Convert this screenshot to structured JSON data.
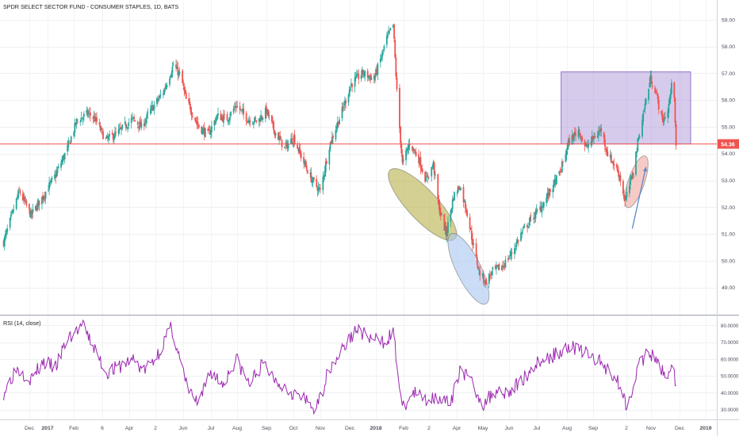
{
  "chart_data": [
    {
      "type": "candlestick",
      "title": "SPDR SELECT SECTOR FUND - CONSUMER STAPLES, 1D, BATS",
      "ylim": [
        48.4,
        59.2
      ],
      "y_ticks": [
        "59.00",
        "58.00",
        "57.00",
        "56.00",
        "55.00",
        "54.00",
        "53.00",
        "52.00",
        "51.00",
        "50.00",
        "49.00"
      ],
      "price_line": {
        "value": 54.36,
        "label": "54.36",
        "color": "#ef5350"
      },
      "x_labels": [
        "Dec",
        "2017",
        "Feb",
        "6",
        "Apr",
        "2",
        "Jun",
        "Jul",
        "Aug",
        "Sep",
        "Oct",
        "Nov",
        "Dec",
        "2018",
        "Feb",
        "2",
        "Apr",
        "May",
        "Jun",
        "Jul",
        "Aug",
        "Sep",
        "2",
        "Nov",
        "Dec",
        "2019"
      ],
      "x_label_bold": [
        "2017",
        "2018",
        "2019"
      ],
      "price_path": [
        [
          "2016-11-28",
          50.7
        ],
        [
          "2016-12-08",
          51.8
        ],
        [
          "2016-12-15",
          52.6
        ],
        [
          "2016-12-28",
          51.7
        ],
        [
          "2017-01-10",
          52.4
        ],
        [
          "2017-01-24",
          53.2
        ],
        [
          "2017-02-06",
          54.2
        ],
        [
          "2017-02-16",
          55.2
        ],
        [
          "2017-02-28",
          55.5
        ],
        [
          "2017-03-08",
          55.3
        ],
        [
          "2017-03-20",
          54.5
        ],
        [
          "2017-04-03",
          54.8
        ],
        [
          "2017-04-18",
          55.3
        ],
        [
          "2017-04-28",
          55.0
        ],
        [
          "2017-05-08",
          55.6
        ],
        [
          "2017-05-22",
          56.3
        ],
        [
          "2017-06-02",
          57.3
        ],
        [
          "2017-06-10",
          56.9
        ],
        [
          "2017-06-16",
          56.0
        ],
        [
          "2017-06-30",
          55.0
        ],
        [
          "2017-07-10",
          54.7
        ],
        [
          "2017-07-20",
          55.4
        ],
        [
          "2017-07-31",
          55.3
        ],
        [
          "2017-08-10",
          55.8
        ],
        [
          "2017-08-22",
          55.3
        ],
        [
          "2017-09-02",
          55.2
        ],
        [
          "2017-09-12",
          55.6
        ],
        [
          "2017-09-20",
          54.9
        ],
        [
          "2017-10-02",
          54.2
        ],
        [
          "2017-10-12",
          54.6
        ],
        [
          "2017-10-20",
          53.9
        ],
        [
          "2017-11-01",
          53.0
        ],
        [
          "2017-11-10",
          52.6
        ],
        [
          "2017-11-20",
          54.3
        ],
        [
          "2017-12-04",
          55.6
        ],
        [
          "2017-12-14",
          56.6
        ],
        [
          "2017-12-26",
          57.0
        ],
        [
          "2018-01-08",
          56.8
        ],
        [
          "2018-01-15",
          57.5
        ],
        [
          "2018-01-22",
          58.3
        ],
        [
          "2018-01-29",
          58.8
        ],
        [
          "2018-02-02",
          56.3
        ],
        [
          "2018-02-08",
          53.6
        ],
        [
          "2018-02-16",
          54.4
        ],
        [
          "2018-02-26",
          53.8
        ],
        [
          "2018-03-06",
          53.0
        ],
        [
          "2018-03-14",
          53.6
        ],
        [
          "2018-03-20",
          52.0
        ],
        [
          "2018-03-28",
          51.0
        ],
        [
          "2018-04-05",
          52.4
        ],
        [
          "2018-04-12",
          52.8
        ],
        [
          "2018-04-20",
          51.8
        ],
        [
          "2018-04-26",
          50.7
        ],
        [
          "2018-05-03",
          49.6
        ],
        [
          "2018-05-10",
          49.2
        ],
        [
          "2018-05-18",
          49.6
        ],
        [
          "2018-05-29",
          49.8
        ],
        [
          "2018-06-08",
          50.3
        ],
        [
          "2018-06-18",
          51.0
        ],
        [
          "2018-06-28",
          51.5
        ],
        [
          "2018-07-10",
          52.0
        ],
        [
          "2018-07-20",
          52.6
        ],
        [
          "2018-07-31",
          53.3
        ],
        [
          "2018-08-09",
          54.4
        ],
        [
          "2018-08-20",
          54.9
        ],
        [
          "2018-08-28",
          54.2
        ],
        [
          "2018-09-06",
          54.6
        ],
        [
          "2018-09-14",
          54.9
        ],
        [
          "2018-09-21",
          54.0
        ],
        [
          "2018-09-28",
          53.6
        ],
        [
          "2018-10-04",
          53.2
        ],
        [
          "2018-10-10",
          52.2
        ],
        [
          "2018-10-18",
          53.2
        ],
        [
          "2018-10-26",
          54.8
        ],
        [
          "2018-11-02",
          56.0
        ],
        [
          "2018-11-07",
          56.8
        ],
        [
          "2018-11-12",
          56.4
        ],
        [
          "2018-11-20",
          55.2
        ],
        [
          "2018-11-26",
          55.6
        ],
        [
          "2018-11-30",
          56.5
        ],
        [
          "2018-12-03",
          56.2
        ],
        [
          "2018-12-05",
          54.36
        ]
      ],
      "candle_colors": {
        "up": "#26a69a",
        "down": "#ef5350"
      },
      "annotations": [
        {
          "type": "rectangle",
          "x_start": "2018-08-01",
          "x_end": "2018-12-21",
          "y_low": 54.36,
          "y_high": 57.05,
          "fill": "#9575cd",
          "stroke": "#9575cd"
        },
        {
          "type": "ellipse",
          "from": [
            "2018-01-28",
            53.3
          ],
          "to": [
            "2018-04-04",
            50.9
          ],
          "fill": "#b8b04a"
        },
        {
          "type": "ellipse",
          "from": [
            "2018-04-04",
            50.9
          ],
          "to": [
            "2018-05-09",
            48.5
          ],
          "fill": "#a9c7f0"
        },
        {
          "type": "ellipse",
          "from": [
            "2018-10-14",
            52.1
          ],
          "to": [
            "2018-10-31",
            53.8
          ],
          "fill": "#f2a7a0"
        },
        {
          "type": "arrow",
          "from": [
            "2018-10-18",
            51.2
          ],
          "to": [
            "2018-11-02",
            53.5
          ],
          "color": "#5a87c9"
        }
      ]
    },
    {
      "type": "line",
      "title": "RSI (14, close)",
      "ylim": [
        27,
        83
      ],
      "y_ticks": [
        "80.0000",
        "70.0000",
        "60.0000",
        "50.0000",
        "40.0000",
        "30.0000"
      ],
      "line_color": "#9c27b0",
      "rsi_path": [
        [
          "2016-11-28",
          40
        ],
        [
          "2016-12-12",
          55
        ],
        [
          "2016-12-28",
          48
        ],
        [
          "2017-01-10",
          58
        ],
        [
          "2017-01-24",
          55
        ],
        [
          "2017-02-06",
          72
        ],
        [
          "2017-02-22",
          80
        ],
        [
          "2017-03-06",
          68
        ],
        [
          "2017-03-20",
          52
        ],
        [
          "2017-04-03",
          55
        ],
        [
          "2017-04-18",
          60
        ],
        [
          "2017-05-01",
          53
        ],
        [
          "2017-05-15",
          62
        ],
        [
          "2017-05-31",
          79
        ],
        [
          "2017-06-16",
          45
        ],
        [
          "2017-06-30",
          32
        ],
        [
          "2017-07-12",
          53
        ],
        [
          "2017-07-26",
          45
        ],
        [
          "2017-08-10",
          60
        ],
        [
          "2017-08-24",
          45
        ],
        [
          "2017-09-08",
          57
        ],
        [
          "2017-09-22",
          48
        ],
        [
          "2017-10-06",
          42
        ],
        [
          "2017-10-20",
          37
        ],
        [
          "2017-11-06",
          30
        ],
        [
          "2017-11-20",
          55
        ],
        [
          "2017-12-06",
          67
        ],
        [
          "2017-12-20",
          78
        ],
        [
          "2018-01-04",
          72
        ],
        [
          "2018-01-18",
          70
        ],
        [
          "2018-01-29",
          76
        ],
        [
          "2018-02-08",
          30
        ],
        [
          "2018-02-20",
          40
        ],
        [
          "2018-03-06",
          36
        ],
        [
          "2018-03-20",
          38
        ],
        [
          "2018-04-02",
          32
        ],
        [
          "2018-04-12",
          55
        ],
        [
          "2018-04-26",
          45
        ],
        [
          "2018-05-08",
          33
        ],
        [
          "2018-05-22",
          42
        ],
        [
          "2018-06-05",
          40
        ],
        [
          "2018-06-20",
          48
        ],
        [
          "2018-07-06",
          58
        ],
        [
          "2018-07-24",
          62
        ],
        [
          "2018-08-08",
          68
        ],
        [
          "2018-08-24",
          65
        ],
        [
          "2018-09-08",
          60
        ],
        [
          "2018-09-24",
          53
        ],
        [
          "2018-10-04",
          45
        ],
        [
          "2018-10-12",
          32
        ],
        [
          "2018-10-24",
          55
        ],
        [
          "2018-11-05",
          64
        ],
        [
          "2018-11-15",
          57
        ],
        [
          "2018-11-26",
          50
        ],
        [
          "2018-12-01",
          60
        ],
        [
          "2018-12-05",
          40
        ]
      ]
    }
  ]
}
